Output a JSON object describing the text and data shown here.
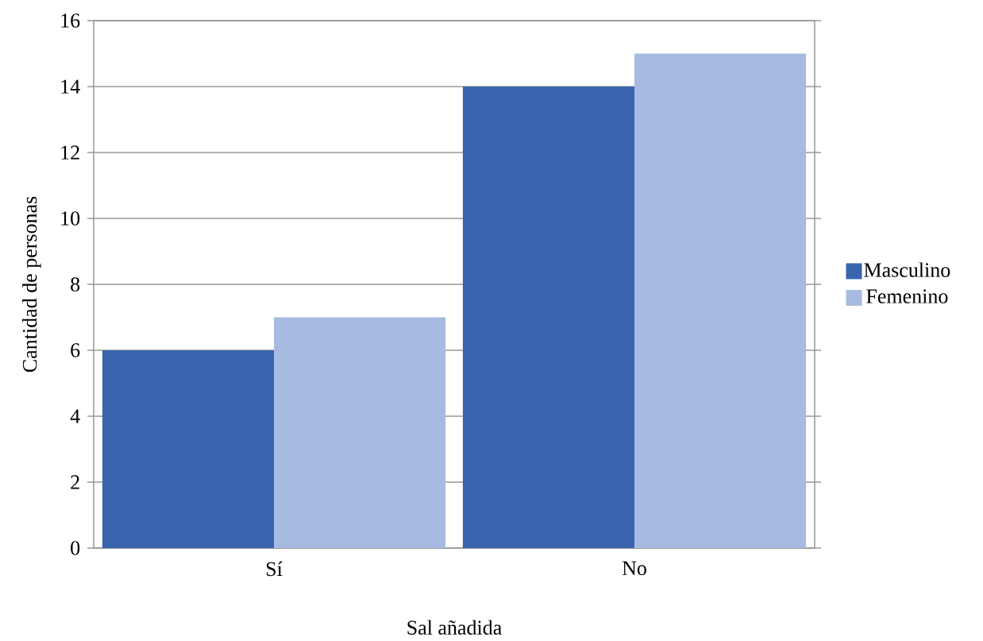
{
  "chart_data": {
    "type": "bar",
    "xlabel": "Sal añadida",
    "ylabel": "Cantidad de personas",
    "categories": [
      "Sí",
      "No"
    ],
    "series": [
      {
        "name": "Masculino",
        "color": "#3a64ad",
        "values": [
          6,
          14
        ]
      },
      {
        "name": "Femenino",
        "color": "#a7bae1",
        "values": [
          7,
          15
        ]
      }
    ],
    "ylim": [
      0,
      16
    ],
    "yticks": [
      0,
      2,
      4,
      6,
      8,
      10,
      12,
      14,
      16
    ],
    "grid": "y",
    "legend": "right"
  }
}
